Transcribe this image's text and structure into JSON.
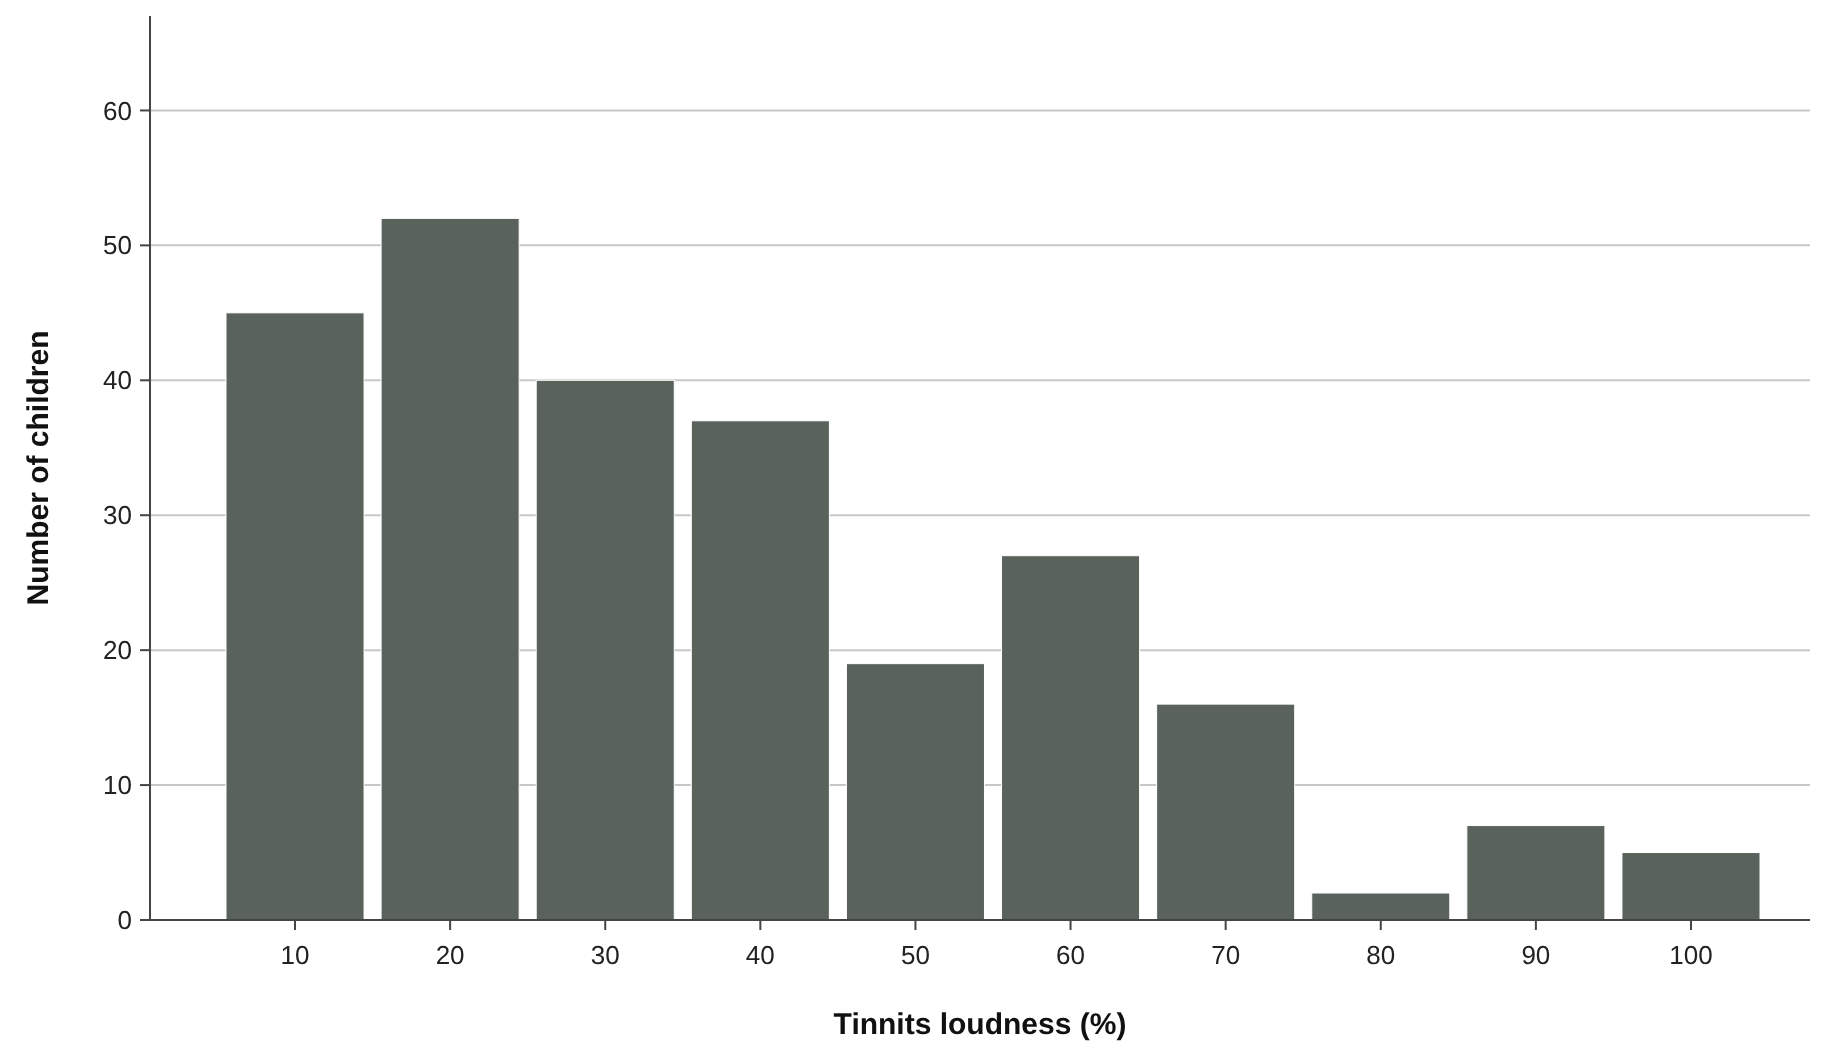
{
  "chart_data": {
    "type": "bar",
    "xlabel": "Tinnits loudness (%)",
    "ylabel": "Number of children",
    "categories": [
      "10",
      "20",
      "30",
      "40",
      "50",
      "60",
      "70",
      "80",
      "90",
      "100"
    ],
    "values": [
      45,
      52,
      40,
      37,
      19,
      27,
      16,
      2,
      7,
      5
    ],
    "color": "#5a625c",
    "ylim": [
      0,
      67
    ],
    "yticks": [
      0,
      10,
      20,
      30,
      40,
      50,
      60
    ],
    "grid": "y"
  }
}
